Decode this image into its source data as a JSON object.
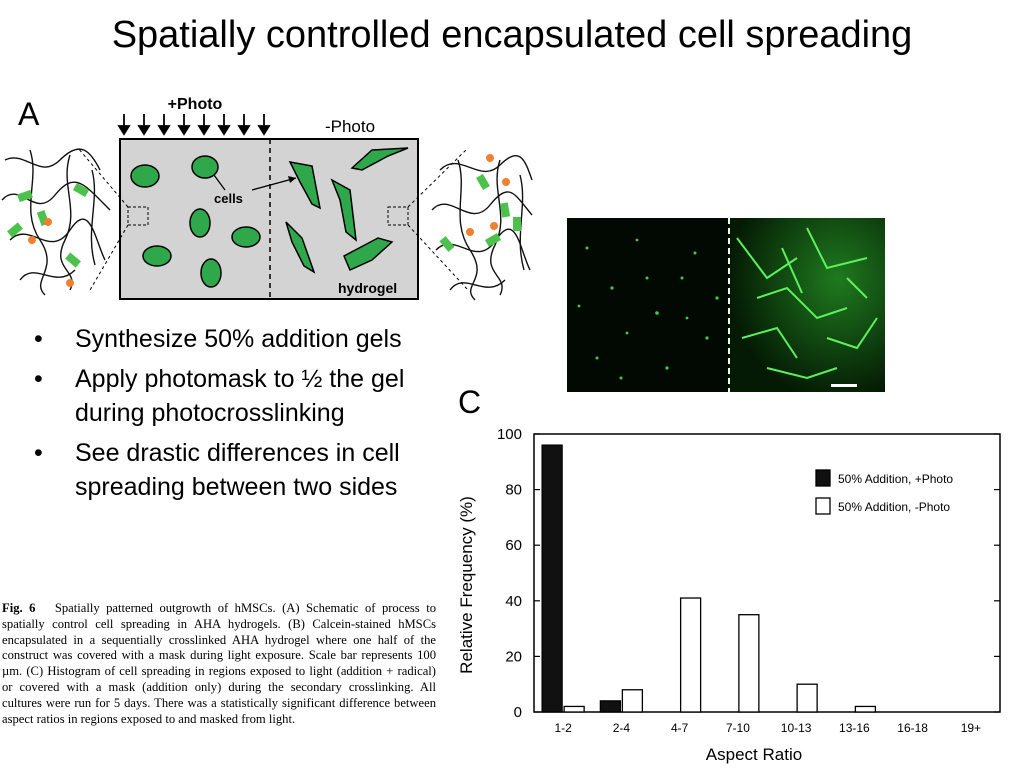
{
  "slide": {
    "title": "Spatially controlled encapsulated cell spreading",
    "panel_a": "A",
    "panel_c": "C"
  },
  "schematic": {
    "photo_on": "+Photo",
    "photo_off": "-Photo",
    "cells_label": "cells",
    "hydrogel_label": "hydrogel",
    "cell_color": "#2ea84a",
    "gel_color": "#d3d3d3"
  },
  "bullets": [
    "Synthesize 50% addition gels",
    "Apply photomask to ½ the gel during photocrosslinking",
    "See drastic differences in cell spreading between two sides"
  ],
  "caption": {
    "fig_label": "Fig. 6",
    "text": "Spatially patterned outgrowth of hMSCs. (A) Schematic of process to spatially control cell spreading in AHA hydrogels. (B) Calcein-stained hMSCs encapsulated in a sequentially crosslinked AHA hydrogel where one half of the construct was covered with a mask during light exposure. Scale bar represents 100 µm. (C) Histogram of cell spreading in regions exposed to light (addition + radical) or covered with a mask (addition only) during the secondary crosslinking. All cultures were run for 5 days. There was a statistically significant difference between aspect ratios in regions exposed to and masked from light."
  },
  "chart_data": {
    "type": "bar",
    "categories": [
      "1-2",
      "2-4",
      "4-7",
      "7-10",
      "10-13",
      "13-16",
      "16-18",
      "19+"
    ],
    "series": [
      {
        "name": "50% Addition, +Photo",
        "values": [
          96,
          4,
          0,
          0,
          0,
          0,
          0,
          0
        ],
        "color": "#111111"
      },
      {
        "name": "50% Addition, -Photo",
        "values": [
          2,
          8,
          41,
          35,
          10,
          2,
          0,
          0
        ],
        "color": "#ffffff"
      }
    ],
    "xlabel": "Aspect Ratio",
    "ylabel": "Relative Frequency (%)",
    "ylim": [
      0,
      100
    ],
    "yticks": [
      0,
      20,
      40,
      60,
      80,
      100
    ],
    "legend_position": "top-right",
    "grid": false
  }
}
